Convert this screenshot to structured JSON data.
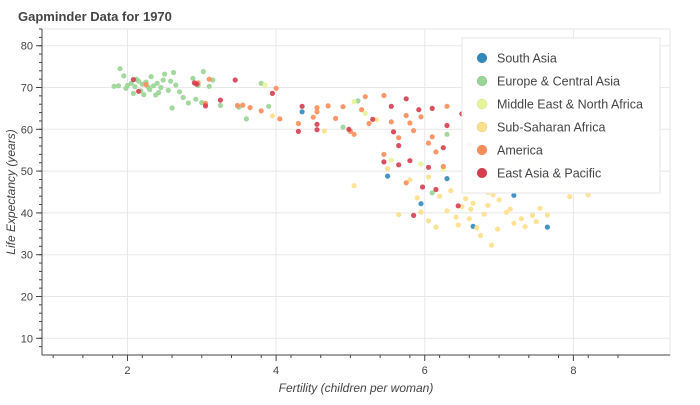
{
  "chart_data": {
    "type": "scatter",
    "title": "Gapminder Data for 1970",
    "xlabel": "Fertility (children per woman)",
    "ylabel": "Life Expectancy (years)",
    "xlim": [
      0.85,
      9.3
    ],
    "ylim": [
      6,
      84
    ],
    "x_ticks": [
      2,
      4,
      6,
      8
    ],
    "y_ticks": [
      10,
      20,
      30,
      40,
      50,
      60,
      70,
      80
    ],
    "grid": true,
    "legend_position": "top-right",
    "series": [
      {
        "name": "South Asia",
        "color": "#3288bd",
        "points": [
          [
            4.35,
            64.2
          ],
          [
            5.5,
            48.8
          ],
          [
            5.95,
            42.2
          ],
          [
            6.65,
            36.8
          ],
          [
            7.2,
            44.2
          ],
          [
            7.65,
            36.6
          ],
          [
            6.3,
            48.2
          ]
        ]
      },
      {
        "name": "Europe & Central Asia",
        "color": "#99d594",
        "points": [
          [
            1.82,
            70.3
          ],
          [
            1.9,
            74.5
          ],
          [
            1.95,
            72.8
          ],
          [
            1.98,
            69.8
          ],
          [
            2.0,
            70.5
          ],
          [
            2.05,
            71.0
          ],
          [
            2.08,
            68.6
          ],
          [
            2.1,
            70.2
          ],
          [
            2.12,
            72.0
          ],
          [
            2.15,
            71.5
          ],
          [
            2.18,
            69.2
          ],
          [
            2.2,
            70.8
          ],
          [
            2.25,
            71.3
          ],
          [
            2.28,
            70.1
          ],
          [
            2.3,
            69.5
          ],
          [
            2.32,
            72.6
          ],
          [
            2.35,
            70.4
          ],
          [
            2.38,
            68.2
          ],
          [
            2.4,
            71.0
          ],
          [
            2.45,
            70.0
          ],
          [
            2.48,
            71.8
          ],
          [
            2.5,
            73.2
          ],
          [
            2.55,
            69.3
          ],
          [
            2.58,
            71.5
          ],
          [
            2.6,
            65.1
          ],
          [
            2.62,
            73.6
          ],
          [
            2.65,
            70.6
          ],
          [
            2.7,
            69.0
          ],
          [
            2.75,
            67.6
          ],
          [
            2.82,
            66.3
          ],
          [
            2.88,
            72.2
          ],
          [
            2.92,
            67.2
          ],
          [
            2.95,
            70.5
          ],
          [
            3.0,
            66.4
          ],
          [
            3.02,
            73.8
          ],
          [
            3.1,
            70.3
          ],
          [
            3.15,
            71.8
          ],
          [
            3.5,
            65.3
          ],
          [
            3.6,
            62.5
          ],
          [
            3.8,
            71.0
          ],
          [
            3.9,
            65.5
          ],
          [
            4.9,
            60.5
          ],
          [
            5.1,
            66.8
          ],
          [
            6.1,
            44.8
          ],
          [
            6.3,
            58.8
          ],
          [
            2.22,
            68.3
          ],
          [
            1.88,
            70.4
          ],
          [
            2.42,
            68.8
          ],
          [
            3.25,
            65.7
          ]
        ]
      },
      {
        "name": "Middle East & North Africa",
        "color": "#e6f598",
        "points": [
          [
            3.85,
            70.6
          ],
          [
            5.05,
            66.6
          ],
          [
            5.55,
            52.6
          ],
          [
            5.95,
            51.7
          ],
          [
            6.25,
            50.5
          ],
          [
            6.7,
            49.0
          ],
          [
            7.05,
            53.8
          ],
          [
            7.35,
            52.2
          ],
          [
            7.55,
            51.0
          ],
          [
            5.2,
            63.8
          ]
        ]
      },
      {
        "name": "Sub-Saharan Africa",
        "color": "#fee08b",
        "points": [
          [
            3.95,
            63.2
          ],
          [
            4.65,
            59.6
          ],
          [
            5.05,
            46.5
          ],
          [
            5.65,
            39.6
          ],
          [
            5.9,
            43.6
          ],
          [
            5.95,
            40.2
          ],
          [
            6.05,
            38.1
          ],
          [
            6.15,
            36.6
          ],
          [
            6.2,
            44.0
          ],
          [
            6.3,
            40.5
          ],
          [
            6.35,
            45.3
          ],
          [
            6.45,
            37.1
          ],
          [
            6.5,
            41.5
          ],
          [
            6.55,
            43.4
          ],
          [
            6.6,
            38.6
          ],
          [
            6.62,
            40.9
          ],
          [
            6.65,
            42.3
          ],
          [
            6.7,
            36.4
          ],
          [
            6.75,
            34.6
          ],
          [
            6.8,
            39.7
          ],
          [
            6.85,
            41.8
          ],
          [
            6.9,
            32.3
          ],
          [
            6.92,
            44.3
          ],
          [
            7.0,
            43.1
          ],
          [
            7.1,
            40.2
          ],
          [
            7.2,
            37.5
          ],
          [
            7.25,
            45.5
          ],
          [
            7.3,
            38.6
          ],
          [
            7.35,
            36.7
          ],
          [
            7.45,
            39.4
          ],
          [
            7.5,
            37.9
          ],
          [
            7.55,
            41.1
          ],
          [
            7.8,
            47.3
          ],
          [
            7.95,
            43.9
          ],
          [
            8.0,
            45.6
          ],
          [
            8.2,
            44.3
          ],
          [
            5.35,
            62.3
          ],
          [
            5.5,
            50.6
          ],
          [
            6.05,
            48.6
          ],
          [
            6.85,
            44.9
          ],
          [
            7.15,
            40.9
          ],
          [
            6.42,
            39.0
          ],
          [
            7.65,
            39.5
          ],
          [
            5.8,
            47.9
          ],
          [
            6.98,
            36.1
          ]
        ]
      },
      {
        "name": "America",
        "color": "#fc8d59",
        "points": [
          [
            2.25,
            70.7
          ],
          [
            2.95,
            71.1
          ],
          [
            3.05,
            66.2
          ],
          [
            3.1,
            72.0
          ],
          [
            3.48,
            65.7
          ],
          [
            3.55,
            65.8
          ],
          [
            3.65,
            65.2
          ],
          [
            3.8,
            64.4
          ],
          [
            4.0,
            69.8
          ],
          [
            4.05,
            62.5
          ],
          [
            4.3,
            61.4
          ],
          [
            4.5,
            62.9
          ],
          [
            4.55,
            64.2
          ],
          [
            4.7,
            65.6
          ],
          [
            4.8,
            62.6
          ],
          [
            4.9,
            65.4
          ],
          [
            5.0,
            59.5
          ],
          [
            5.05,
            58.8
          ],
          [
            5.15,
            64.7
          ],
          [
            5.2,
            67.8
          ],
          [
            5.25,
            61.4
          ],
          [
            5.45,
            68.1
          ],
          [
            5.55,
            61.8
          ],
          [
            5.65,
            58.0
          ],
          [
            5.75,
            63.3
          ],
          [
            5.8,
            61.5
          ],
          [
            5.85,
            59.7
          ],
          [
            5.95,
            63.0
          ],
          [
            6.1,
            58.2
          ],
          [
            6.15,
            54.6
          ],
          [
            6.25,
            51.1
          ],
          [
            5.45,
            54.0
          ],
          [
            5.75,
            47.2
          ],
          [
            6.3,
            65.5
          ],
          [
            4.55,
            65.2
          ],
          [
            6.05,
            56.7
          ]
        ]
      },
      {
        "name": "East Asia & Pacific",
        "color": "#d53e4f",
        "points": [
          [
            2.08,
            71.9
          ],
          [
            2.15,
            69.1
          ],
          [
            2.9,
            71.1
          ],
          [
            2.93,
            70.8
          ],
          [
            3.05,
            65.6
          ],
          [
            3.25,
            67.0
          ],
          [
            3.45,
            71.8
          ],
          [
            3.95,
            68.6
          ],
          [
            4.3,
            59.5
          ],
          [
            4.35,
            65.5
          ],
          [
            4.55,
            61.2
          ],
          [
            4.55,
            59.9
          ],
          [
            4.98,
            60.0
          ],
          [
            5.3,
            62.4
          ],
          [
            5.45,
            52.2
          ],
          [
            5.55,
            65.5
          ],
          [
            5.58,
            59.4
          ],
          [
            5.65,
            51.5
          ],
          [
            5.75,
            67.3
          ],
          [
            5.8,
            52.5
          ],
          [
            5.92,
            64.7
          ],
          [
            5.97,
            46.2
          ],
          [
            6.05,
            50.9
          ],
          [
            6.15,
            45.6
          ],
          [
            6.25,
            55.6
          ],
          [
            6.3,
            60.9
          ],
          [
            6.45,
            41.7
          ],
          [
            6.5,
            63.7
          ],
          [
            6.6,
            56.3
          ],
          [
            5.85,
            39.4
          ],
          [
            6.1,
            65.0
          ],
          [
            5.65,
            56.1
          ]
        ]
      }
    ]
  }
}
